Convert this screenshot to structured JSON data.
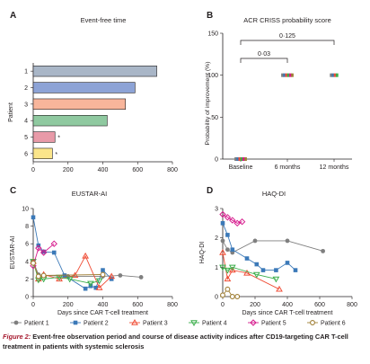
{
  "caption": {
    "label": "Figure 2:",
    "text": "Event-free observation period and course of disease activity indices after CD19-targeting CAR T-cell treatment in patients with systemic sclerosis"
  },
  "shared": {
    "x_title": "Days since CAR T-cell treatment",
    "legend": [
      {
        "name": "Patient 1",
        "color": "#7f7f7f",
        "marker": "circle"
      },
      {
        "name": "Patient 2",
        "color": "#3b79b8",
        "marker": "square"
      },
      {
        "name": "Patient 3",
        "color": "#f04e37",
        "marker": "triangle-up"
      },
      {
        "name": "Patient 4",
        "color": "#3aae4a",
        "marker": "triangle-down"
      },
      {
        "name": "Patient 5",
        "color": "#d6198c",
        "marker": "diamond"
      },
      {
        "name": "Patient 6",
        "color": "#a07f36",
        "marker": "circle-open"
      }
    ]
  },
  "chart_data": [
    {
      "panel": "A",
      "type": "bar",
      "orientation": "horizontal",
      "title": "Event-free time",
      "ylabel": "Patient",
      "xlabel": "",
      "categories": [
        "1",
        "2",
        "3",
        "4",
        "5",
        "6"
      ],
      "values": [
        710,
        585,
        530,
        425,
        125,
        110
      ],
      "colors": [
        "#a9b6c7",
        "#8da3d6",
        "#f8b59b",
        "#8fc9a0",
        "#e89aa8",
        "#fbe58a"
      ],
      "marks": [
        "",
        "",
        "",
        "",
        "*",
        "*"
      ],
      "xlim": [
        0,
        800
      ],
      "xticks": [
        0,
        200,
        400,
        600,
        800
      ],
      "grid": false
    },
    {
      "panel": "B",
      "type": "scatter",
      "title": "ACR CRISS probability score",
      "ylabel": "Probability of improvement (%)",
      "xlabel": "",
      "categories": [
        "Baseline",
        "6 months",
        "12 months"
      ],
      "series": [
        {
          "name": "Patient 1",
          "values": [
            0,
            100,
            100
          ]
        },
        {
          "name": "Patient 2",
          "values": [
            0,
            100,
            100
          ]
        },
        {
          "name": "Patient 3",
          "values": [
            0,
            100,
            100
          ]
        },
        {
          "name": "Patient 4",
          "values": [
            0,
            100,
            100
          ]
        },
        {
          "name": "Patient 5",
          "values": [
            0,
            100,
            null
          ]
        },
        {
          "name": "Patient 6",
          "values": [
            0,
            100,
            null
          ]
        }
      ],
      "ylim": [
        0,
        150
      ],
      "yticks": [
        0,
        50,
        100,
        150
      ],
      "brackets": [
        {
          "from": 0,
          "to": 1,
          "label": "0·03"
        },
        {
          "from": 0,
          "to": 2,
          "label": "0·125"
        }
      ],
      "grid": false
    },
    {
      "panel": "C",
      "type": "line",
      "title": "EUSTAR-AI",
      "ylabel": "EUSTAR-AI",
      "xlabel": "Days since CAR T-cell treatment",
      "xlim": [
        0,
        800
      ],
      "ylim": [
        0,
        10
      ],
      "xticks": [
        0,
        200,
        400,
        600,
        800
      ],
      "yticks": [
        0,
        2,
        4,
        6,
        8,
        10
      ],
      "series": [
        {
          "name": "Patient 1",
          "points": [
            [
              0,
              4.0
            ],
            [
              30,
              2.5
            ],
            [
              60,
              2.4
            ],
            [
              200,
              2.3
            ],
            [
              400,
              2.3
            ],
            [
              500,
              2.4
            ],
            [
              620,
              2.2
            ]
          ]
        },
        {
          "name": "Patient 2",
          "points": [
            [
              0,
              9.0
            ],
            [
              30,
              5.8
            ],
            [
              60,
              5.1
            ],
            [
              120,
              5.0
            ],
            [
              180,
              2.4
            ],
            [
              300,
              0.9
            ],
            [
              330,
              1.2
            ],
            [
              360,
              1.0
            ],
            [
              400,
              3.0
            ],
            [
              450,
              2.0
            ]
          ]
        },
        {
          "name": "Patient 3",
          "points": [
            [
              0,
              4.0
            ],
            [
              30,
              2.0
            ],
            [
              60,
              2.5
            ],
            [
              150,
              2.0
            ],
            [
              240,
              2.4
            ],
            [
              300,
              4.6
            ],
            [
              380,
              1.0
            ],
            [
              450,
              2.3
            ]
          ]
        },
        {
          "name": "Patient 4",
          "points": [
            [
              0,
              4.0
            ],
            [
              30,
              1.9
            ],
            [
              60,
              2.0
            ],
            [
              150,
              2.2
            ],
            [
              210,
              2.0
            ],
            [
              330,
              1.5
            ],
            [
              380,
              1.8
            ]
          ]
        },
        {
          "name": "Patient 5",
          "points": [
            [
              0,
              3.5
            ],
            [
              30,
              5.5
            ],
            [
              60,
              5.0
            ],
            [
              120,
              6.0
            ]
          ]
        },
        {
          "name": "Patient 6",
          "points": [
            [
              0,
              3.8
            ],
            [
              30,
              2.3
            ],
            [
              60,
              2.4
            ],
            [
              400,
              2.5
            ]
          ]
        }
      ],
      "grid": false
    },
    {
      "panel": "D",
      "type": "line",
      "title": "HAQ-DI",
      "ylabel": "HAQ-DI",
      "xlabel": "Days since CAR T-cell treatment",
      "xlim": [
        0,
        800
      ],
      "ylim": [
        0,
        3
      ],
      "xticks": [
        0,
        200,
        400,
        600,
        800
      ],
      "yticks": [
        0,
        1,
        2,
        3
      ],
      "series": [
        {
          "name": "Patient 1",
          "points": [
            [
              0,
              1.9
            ],
            [
              30,
              1.6
            ],
            [
              60,
              1.5
            ],
            [
              200,
              1.9
            ],
            [
              400,
              1.9
            ],
            [
              620,
              1.55
            ]
          ]
        },
        {
          "name": "Patient 2",
          "points": [
            [
              0,
              2.5
            ],
            [
              30,
              2.1
            ],
            [
              60,
              1.6
            ],
            [
              150,
              1.3
            ],
            [
              210,
              1.1
            ],
            [
              250,
              0.9
            ],
            [
              330,
              0.9
            ],
            [
              400,
              1.15
            ],
            [
              450,
              0.9
            ]
          ]
        },
        {
          "name": "Patient 3",
          "points": [
            [
              0,
              1.5
            ],
            [
              30,
              0.6
            ],
            [
              60,
              0.9
            ],
            [
              150,
              0.8
            ],
            [
              350,
              0.25
            ]
          ]
        },
        {
          "name": "Patient 4",
          "points": [
            [
              0,
              1.0
            ],
            [
              30,
              0.9
            ],
            [
              60,
              1.0
            ],
            [
              210,
              0.75
            ],
            [
              330,
              0.6
            ]
          ]
        },
        {
          "name": "Patient 5",
          "points": [
            [
              0,
              2.8
            ],
            [
              30,
              2.7
            ],
            [
              60,
              2.6
            ],
            [
              90,
              2.5
            ],
            [
              120,
              2.55
            ]
          ]
        },
        {
          "name": "Patient 6",
          "points": [
            [
              0,
              0.05
            ],
            [
              30,
              0.25
            ],
            [
              60,
              0.0
            ],
            [
              90,
              0.0
            ]
          ]
        }
      ],
      "grid": false
    }
  ]
}
